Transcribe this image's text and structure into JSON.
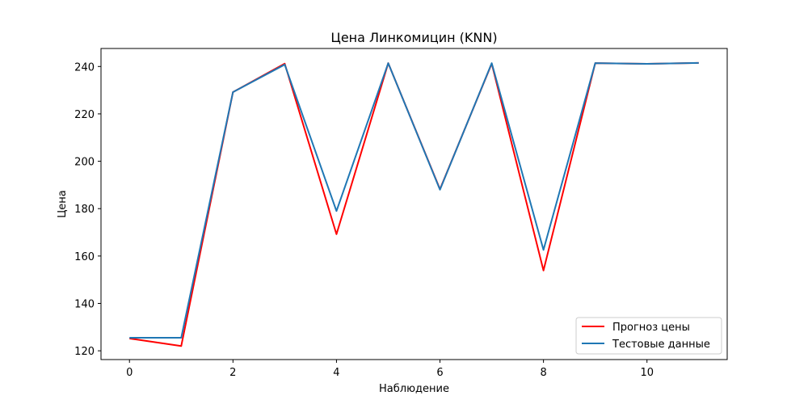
{
  "chart_data": {
    "type": "line",
    "title": "Цена Линкомицин  (KNN)",
    "xlabel": "Наблюдение",
    "ylabel": "Цена",
    "xlim": [
      -0.55,
      11.55
    ],
    "ylim": [
      116.3,
      247.6
    ],
    "xticks": [
      0,
      2,
      4,
      6,
      8,
      10
    ],
    "yticks": [
      120,
      140,
      160,
      180,
      200,
      220,
      240
    ],
    "grid": false,
    "legend_position": "lower right",
    "x": [
      0,
      1,
      2,
      3,
      4,
      5,
      6,
      7,
      8,
      9,
      10,
      11
    ],
    "series": [
      {
        "name": "Прогноз цены",
        "color": "#ff0000",
        "values": [
          125.2,
          122.0,
          229.2,
          241.2,
          169.2,
          241.4,
          188.2,
          241.2,
          153.9,
          241.4,
          241.1,
          241.5
        ]
      },
      {
        "name": "Тестовые данные",
        "color": "#1f77b4",
        "values": [
          125.5,
          125.5,
          229.2,
          240.8,
          179.0,
          241.4,
          188.0,
          241.4,
          162.6,
          241.4,
          241.1,
          241.5
        ]
      }
    ]
  }
}
